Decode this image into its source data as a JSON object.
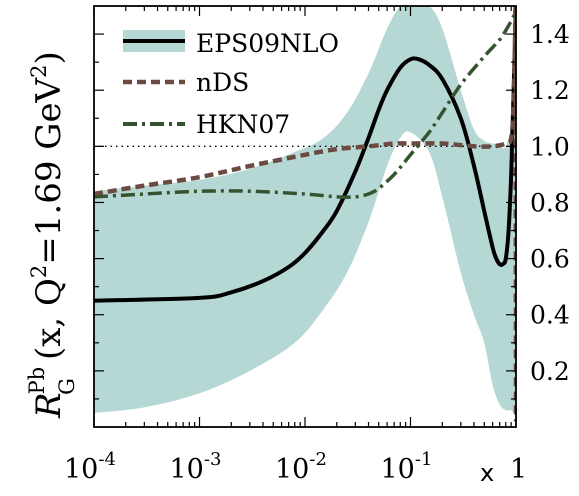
{
  "chart_data": {
    "type": "line",
    "x_scale": "log",
    "xlim": [
      0.0001,
      1
    ],
    "ylim": [
      0,
      1.5
    ],
    "x_ticks": [
      {
        "value": 0.0001,
        "base": "10",
        "exp": "-4"
      },
      {
        "value": 0.001,
        "base": "10",
        "exp": "-3"
      },
      {
        "value": 0.01,
        "base": "10",
        "exp": "-2"
      },
      {
        "value": 0.1,
        "base": "10",
        "exp": "-1"
      },
      {
        "value": 1,
        "base": "1",
        "exp": ""
      }
    ],
    "xlabel": "x",
    "y_ticks": [
      {
        "value": 0.2,
        "label": "0.2"
      },
      {
        "value": 0.4,
        "label": "0.4"
      },
      {
        "value": 0.6,
        "label": "0.6"
      },
      {
        "value": 0.8,
        "label": "0.8"
      },
      {
        "value": 1.0,
        "label": "1.0"
      },
      {
        "value": 1.2,
        "label": "1.2"
      },
      {
        "value": 1.4,
        "label": "1.4"
      }
    ],
    "ylabel": {
      "R": "R",
      "sup": "Pb",
      "sub": "G",
      "args": "(x, Q",
      "q_exp": "2",
      "eq": "=1.69 GeV",
      "gev_exp": "2",
      "close": ")"
    },
    "grid": false,
    "legend_position": "top-left",
    "reference_line": {
      "y": 1.0,
      "style": "dotted"
    },
    "band": {
      "series": "EPS09NLO",
      "color": "#b6d8d5",
      "x": [
        0.0001,
        0.0003,
        0.001,
        0.003,
        0.008,
        0.015,
        0.025,
        0.04,
        0.06,
        0.08,
        0.1,
        0.15,
        0.2,
        0.3,
        0.4,
        0.5,
        0.6,
        0.7,
        0.8,
        0.9,
        0.95,
        1.0
      ],
      "upper": [
        0.84,
        0.86,
        0.88,
        0.92,
        0.98,
        1.03,
        1.12,
        1.26,
        1.42,
        1.5,
        1.52,
        1.5,
        1.42,
        1.2,
        1.06,
        1.02,
        1.01,
        1.0,
        1.0,
        1.1,
        1.45,
        1.6
      ],
      "lower": [
        0.05,
        0.07,
        0.12,
        0.2,
        0.3,
        0.42,
        0.55,
        0.73,
        0.93,
        1.03,
        1.05,
        0.98,
        0.82,
        0.55,
        0.4,
        0.3,
        0.15,
        0.08,
        0.06,
        0.06,
        0.05,
        0.04
      ]
    },
    "series": [
      {
        "name": "EPS09NLO",
        "color": "#000000",
        "style": "solid",
        "x": [
          0.0001,
          0.001,
          0.002,
          0.004,
          0.007,
          0.01,
          0.015,
          0.02,
          0.03,
          0.04,
          0.05,
          0.06,
          0.08,
          0.1,
          0.12,
          0.15,
          0.2,
          0.3,
          0.4,
          0.5,
          0.6,
          0.65,
          0.7,
          0.75,
          0.8,
          0.85,
          0.9,
          0.95,
          1.0
        ],
        "y": [
          0.45,
          0.46,
          0.48,
          0.52,
          0.57,
          0.62,
          0.7,
          0.77,
          0.91,
          1.03,
          1.13,
          1.2,
          1.28,
          1.31,
          1.31,
          1.29,
          1.24,
          1.1,
          0.93,
          0.77,
          0.64,
          0.6,
          0.58,
          0.58,
          0.6,
          0.7,
          0.9,
          1.2,
          1.5
        ]
      },
      {
        "name": "nDS",
        "color": "#6b4a42",
        "style": "dashed",
        "x": [
          0.0001,
          0.0003,
          0.001,
          0.003,
          0.01,
          0.02,
          0.04,
          0.07,
          0.1,
          0.2,
          0.4,
          0.6,
          0.8,
          0.9,
          0.95,
          0.98,
          0.99,
          1.0
        ],
        "y": [
          0.83,
          0.86,
          0.89,
          0.93,
          0.97,
          0.99,
          1.0,
          1.01,
          1.01,
          1.01,
          1.0,
          1.0,
          1.01,
          1.03,
          1.15,
          1.4,
          1.5,
          0.02
        ]
      },
      {
        "name": "HKN07",
        "color": "#35532f",
        "style": "dashdot",
        "x": [
          0.0001,
          0.0003,
          0.001,
          0.003,
          0.01,
          0.02,
          0.03,
          0.04,
          0.05,
          0.07,
          0.1,
          0.15,
          0.2,
          0.3,
          0.5,
          0.7,
          0.85,
          1.0
        ],
        "y": [
          0.82,
          0.83,
          0.84,
          0.84,
          0.83,
          0.82,
          0.82,
          0.83,
          0.85,
          0.9,
          0.97,
          1.05,
          1.12,
          1.22,
          1.32,
          1.38,
          1.43,
          1.48
        ]
      }
    ]
  }
}
